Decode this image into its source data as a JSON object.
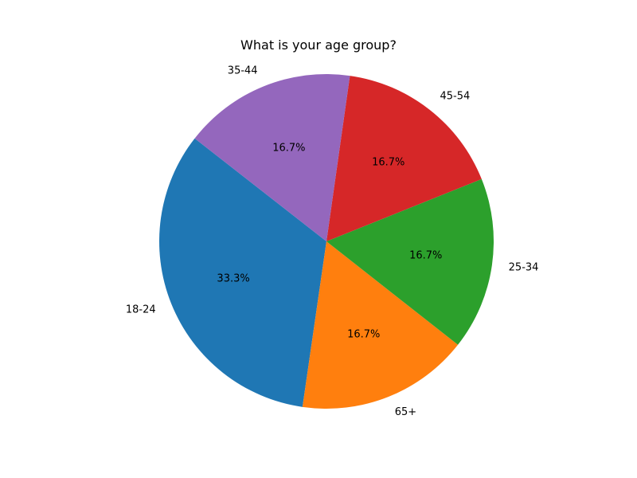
{
  "chart_data": {
    "type": "pie",
    "title": "What is your age group?",
    "start_angle_deg": 142,
    "direction": "counterclockwise",
    "slices": [
      {
        "label": "18-24",
        "value": 33.3,
        "pct_label": "33.3%",
        "color": "#1f77b4"
      },
      {
        "label": "65+",
        "value": 16.7,
        "pct_label": "16.7%",
        "color": "#ff7f0e"
      },
      {
        "label": "25-34",
        "value": 16.7,
        "pct_label": "16.7%",
        "color": "#2ca02c"
      },
      {
        "label": "45-54",
        "value": 16.7,
        "pct_label": "16.7%",
        "color": "#d62728"
      },
      {
        "label": "35-44",
        "value": 16.7,
        "pct_label": "16.7%",
        "color": "#9467bd"
      }
    ]
  }
}
